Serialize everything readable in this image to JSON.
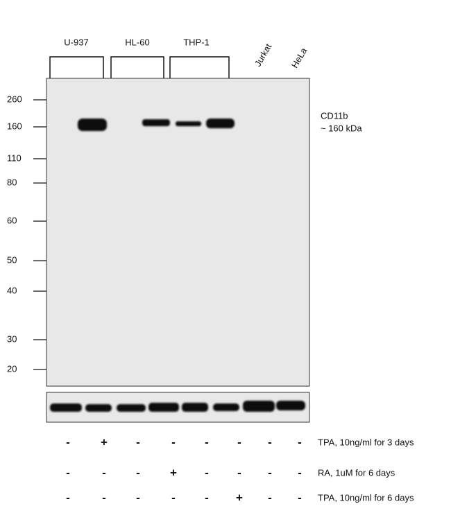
{
  "cell_lines": [
    "U-937",
    "HL-60",
    "THP-1",
    "Jurkat",
    "HeLa"
  ],
  "markers": [
    "260",
    "160",
    "110",
    "80",
    "60",
    "50",
    "40",
    "30",
    "20"
  ],
  "band_annotation": {
    "target": "CD11b",
    "size": "~ 160 kDa"
  },
  "treatments": [
    {
      "signs": [
        "-",
        "+",
        "-",
        "-",
        "-",
        "-",
        "-",
        "-"
      ],
      "label": "TPA, 10ng/ml for 3 days"
    },
    {
      "signs": [
        "-",
        "-",
        "-",
        "+",
        "-",
        "-",
        "-",
        "-"
      ],
      "label": "RA, 1uM for 6 days"
    },
    {
      "signs": [
        "-",
        "-",
        "-",
        "-",
        "-",
        "+",
        "-",
        "-"
      ],
      "label": "TPA, 10ng/ml for 6 days"
    }
  ]
}
